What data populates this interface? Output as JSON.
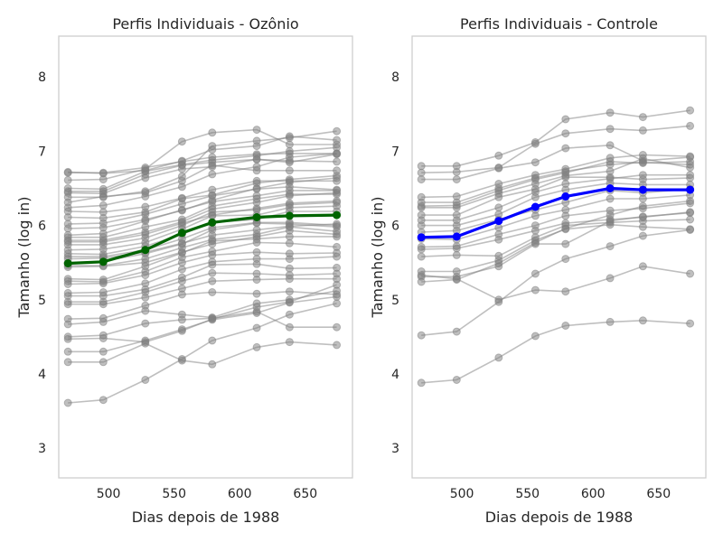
{
  "chart_data": [
    {
      "type": "line",
      "title": "Perfis Individuais - Ozônio",
      "xlabel": "Dias depois de 1988",
      "ylabel": "Tamanho (log in)",
      "xlim": [
        462,
        686
      ],
      "ylim": [
        2.6,
        8.55
      ],
      "xticks": [
        500,
        550,
        600,
        650
      ],
      "yticks": [
        3,
        4,
        5,
        6,
        7,
        8
      ],
      "grid": false,
      "x": [
        469,
        496,
        528,
        556,
        579,
        613,
        638,
        674
      ],
      "colors": {
        "individual": "#808080",
        "mean": "#006400"
      },
      "series": [
        {
          "values": [
            6.71,
            6.71,
            6.78,
            6.86,
            6.92,
            6.96,
            6.97,
            6.97
          ]
        },
        {
          "values": [
            6.61,
            6.62,
            6.76,
            7.13,
            7.25,
            7.29,
            7.09,
            7.09
          ]
        },
        {
          "values": [
            6.5,
            6.49,
            6.73,
            6.82,
            6.88,
            6.94,
            7.0,
            7.05
          ]
        },
        {
          "values": [
            6.46,
            6.46,
            6.69,
            6.81,
            6.85,
            6.89,
            6.87,
            6.86
          ]
        },
        {
          "values": [
            6.44,
            6.43,
            6.64,
            6.76,
            6.79,
            6.89,
            6.85,
            6.96
          ]
        },
        {
          "values": [
            6.38,
            6.38,
            6.46,
            6.66,
            7.07,
            7.14,
            7.18,
            7.27
          ]
        },
        {
          "values": [
            6.31,
            6.39,
            6.44,
            6.6,
            6.81,
            6.74,
            6.74,
            6.74
          ]
        },
        {
          "values": [
            6.24,
            6.27,
            6.39,
            6.52,
            6.69,
            6.79,
            6.92,
            6.97
          ]
        },
        {
          "values": [
            6.19,
            6.18,
            6.25,
            6.37,
            6.48,
            6.6,
            6.6,
            6.6
          ]
        },
        {
          "values": [
            6.11,
            6.1,
            6.18,
            6.36,
            6.41,
            6.57,
            6.62,
            6.67
          ]
        },
        {
          "values": [
            6.02,
            6.03,
            6.15,
            6.29,
            6.4,
            6.49,
            6.52,
            6.48
          ]
        },
        {
          "values": [
            5.87,
            5.89,
            6.06,
            6.21,
            6.32,
            6.4,
            6.47,
            6.47
          ]
        },
        {
          "values": [
            5.84,
            5.84,
            5.98,
            6.08,
            6.26,
            6.36,
            6.42,
            6.42
          ]
        },
        {
          "values": [
            5.8,
            5.8,
            5.91,
            6.05,
            6.22,
            6.31,
            6.4,
            6.44
          ]
        },
        {
          "values": [
            5.74,
            5.74,
            5.83,
            6.0,
            6.18,
            6.21,
            6.28,
            6.31
          ]
        },
        {
          "values": [
            5.67,
            5.68,
            5.77,
            5.95,
            6.13,
            6.14,
            6.24,
            6.26
          ]
        },
        {
          "values": [
            5.62,
            5.61,
            5.72,
            5.88,
            6.04,
            6.08,
            6.19,
            6.19
          ]
        },
        {
          "values": [
            5.58,
            5.58,
            5.67,
            5.82,
            5.97,
            6.04,
            6.04,
            6.0
          ]
        },
        {
          "values": [
            5.49,
            5.52,
            5.62,
            5.75,
            5.94,
            6.03,
            6.02,
            5.98
          ]
        },
        {
          "values": [
            5.46,
            5.46,
            5.55,
            5.7,
            5.81,
            5.88,
            5.98,
            5.92
          ]
        },
        {
          "values": [
            5.44,
            5.45,
            5.5,
            5.64,
            5.75,
            5.85,
            5.93,
            5.88
          ]
        },
        {
          "values": [
            5.28,
            5.27,
            5.45,
            5.63,
            5.79,
            5.82,
            5.85,
            5.85
          ]
        },
        {
          "values": [
            5.25,
            5.24,
            5.38,
            5.57,
            5.65,
            5.77,
            5.76,
            5.71
          ]
        },
        {
          "values": [
            5.21,
            5.22,
            5.33,
            5.5,
            5.6,
            5.64,
            5.62,
            5.63
          ]
        },
        {
          "values": [
            5.09,
            5.1,
            5.22,
            5.41,
            5.51,
            5.55,
            5.55,
            5.58
          ]
        },
        {
          "values": [
            5.05,
            5.05,
            5.14,
            5.3,
            5.47,
            5.48,
            5.42,
            5.43
          ]
        },
        {
          "values": [
            4.97,
            4.97,
            5.1,
            5.25,
            5.36,
            5.35,
            5.33,
            5.35
          ]
        },
        {
          "values": [
            4.94,
            4.94,
            5.03,
            5.15,
            5.25,
            5.27,
            5.28,
            5.28
          ]
        },
        {
          "values": [
            4.74,
            4.75,
            4.92,
            5.07,
            5.1,
            5.08,
            5.11,
            5.07
          ]
        },
        {
          "values": [
            4.67,
            4.7,
            4.85,
            4.8,
            4.76,
            4.95,
            5.0,
            5.12
          ]
        },
        {
          "values": [
            4.5,
            4.52,
            4.68,
            4.73,
            4.75,
            4.84,
            4.63,
            4.63
          ]
        },
        {
          "values": [
            4.47,
            4.48,
            4.43,
            4.58,
            4.74,
            4.9,
            4.97,
            5.2
          ]
        },
        {
          "values": [
            4.3,
            4.3,
            4.45,
            4.6,
            4.73,
            4.82,
            4.96,
            5.04
          ]
        },
        {
          "values": [
            4.16,
            4.16,
            4.41,
            4.18,
            4.13,
            4.36,
            4.43,
            4.39
          ]
        },
        {
          "values": [
            3.61,
            3.65,
            3.92,
            4.2,
            4.45,
            4.62,
            4.8,
            4.95
          ]
        },
        {
          "values": [
            6.72,
            6.7,
            6.74,
            6.87,
            7.02,
            7.07,
            7.2,
            7.15
          ]
        },
        {
          "values": [
            5.96,
            5.97,
            6.08,
            6.2,
            6.34,
            6.5,
            6.58,
            6.64
          ]
        },
        {
          "values": [
            5.78,
            5.78,
            5.88,
            6.03,
            6.14,
            6.23,
            6.3,
            6.33
          ]
        },
        {
          "values": [
            5.55,
            5.56,
            5.64,
            5.76,
            5.87,
            5.94,
            5.99,
            6.02
          ]
        }
      ],
      "mean": {
        "values": [
          5.49,
          5.51,
          5.67,
          5.9,
          6.04,
          6.11,
          6.13,
          6.14
        ]
      }
    },
    {
      "type": "line",
      "title": "Perfis Individuais - Controle",
      "xlabel": "Dias depois de 1988",
      "ylabel": "Tamanho (log in)",
      "xlim": [
        462,
        686
      ],
      "ylim": [
        2.6,
        8.55
      ],
      "xticks": [
        500,
        550,
        600,
        650
      ],
      "yticks": [
        3,
        4,
        5,
        6,
        7,
        8
      ],
      "grid": false,
      "x": [
        469,
        496,
        528,
        556,
        579,
        613,
        638,
        674
      ],
      "colors": {
        "individual": "#808080",
        "mean": "#0000ff"
      },
      "series": [
        {
          "values": [
            6.8,
            6.8,
            6.94,
            7.12,
            7.43,
            7.52,
            7.46,
            7.55
          ]
        },
        {
          "values": [
            6.71,
            6.72,
            6.78,
            7.1,
            7.24,
            7.3,
            7.28,
            7.34
          ]
        },
        {
          "values": [
            6.62,
            6.62,
            6.77,
            6.85,
            7.04,
            7.08,
            6.87,
            6.92
          ]
        },
        {
          "values": [
            6.38,
            6.39,
            6.56,
            6.68,
            6.76,
            6.91,
            6.95,
            6.93
          ]
        },
        {
          "values": [
            6.31,
            6.31,
            6.5,
            6.64,
            6.73,
            6.82,
            6.85,
            6.82
          ]
        },
        {
          "values": [
            6.24,
            6.24,
            6.43,
            6.56,
            6.67,
            6.73,
            6.9,
            6.78
          ]
        },
        {
          "values": [
            6.14,
            6.14,
            6.38,
            6.49,
            6.65,
            6.65,
            6.62,
            6.64
          ]
        },
        {
          "values": [
            6.07,
            6.07,
            6.24,
            6.45,
            6.56,
            6.63,
            6.68,
            6.68
          ]
        },
        {
          "values": [
            6.0,
            6.0,
            6.15,
            6.38,
            6.48,
            6.57,
            6.55,
            6.55
          ]
        },
        {
          "values": [
            5.91,
            5.93,
            6.08,
            6.21,
            6.31,
            6.47,
            6.44,
            6.49
          ]
        },
        {
          "values": [
            5.82,
            5.81,
            5.97,
            6.13,
            6.21,
            6.36,
            6.36,
            6.41
          ]
        },
        {
          "values": [
            5.71,
            5.72,
            5.88,
            6.0,
            6.13,
            6.2,
            6.23,
            6.3
          ]
        },
        {
          "values": [
            5.68,
            5.69,
            5.81,
            5.93,
            6.03,
            6.08,
            6.11,
            6.18
          ]
        },
        {
          "values": [
            5.58,
            5.6,
            5.59,
            5.84,
            6.0,
            6.04,
            6.06,
            6.08
          ]
        },
        {
          "values": [
            5.38,
            5.38,
            5.53,
            5.8,
            5.95,
            6.01,
            5.98,
            5.95
          ]
        },
        {
          "values": [
            5.31,
            5.31,
            5.45,
            5.75,
            5.75,
            6.06,
            6.12,
            6.17
          ]
        },
        {
          "values": [
            5.24,
            5.27,
            5.49,
            5.77,
            5.96,
            6.14,
            6.26,
            6.33
          ]
        },
        {
          "values": [
            5.33,
            5.28,
            5.0,
            5.13,
            5.11,
            5.29,
            5.45,
            5.35
          ]
        },
        {
          "values": [
            4.52,
            4.57,
            4.97,
            5.35,
            5.55,
            5.72,
            5.86,
            5.94
          ]
        },
        {
          "values": [
            3.88,
            3.92,
            4.22,
            4.51,
            4.65,
            4.7,
            4.72,
            4.68
          ]
        },
        {
          "values": [
            6.26,
            6.27,
            6.47,
            6.62,
            6.71,
            6.86,
            6.84,
            6.86
          ]
        }
      ],
      "mean": {
        "values": [
          5.84,
          5.85,
          6.06,
          6.25,
          6.39,
          6.5,
          6.48,
          6.48
        ]
      }
    }
  ]
}
